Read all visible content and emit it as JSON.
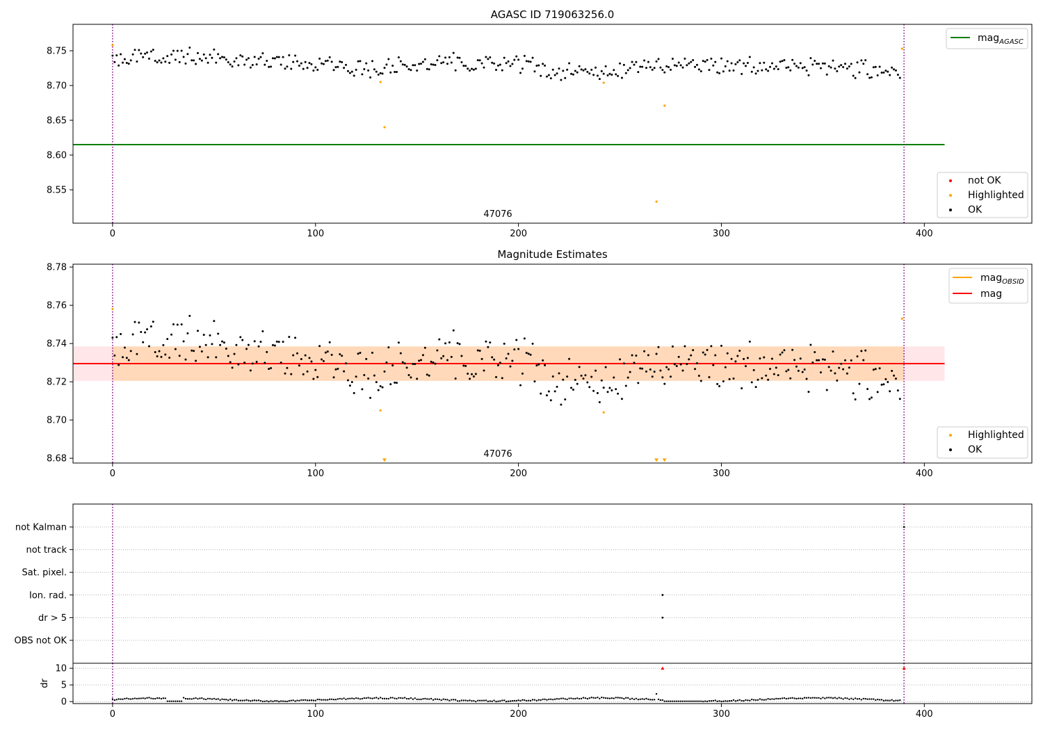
{
  "chart_data": [
    {
      "type": "scatter",
      "title": "AGASC ID 719063256.0",
      "xlim": [
        -19.5,
        453
      ],
      "ylim": [
        8.502,
        8.788
      ],
      "xticks": [
        "0",
        "100",
        "200",
        "300",
        "400"
      ],
      "xtick_values": [
        0,
        100,
        200,
        300,
        400
      ],
      "yticks": [
        "8.55",
        "8.60",
        "8.65",
        "8.70",
        "8.75"
      ],
      "ytick_values": [
        8.55,
        8.6,
        8.65,
        8.7,
        8.75
      ],
      "annotation": "47076",
      "annotation_x": 195,
      "vlines": [
        0,
        390
      ],
      "vline_color": "#800080",
      "hline": {
        "y": 8.615,
        "x_end": 410,
        "color": "#008000"
      },
      "legend_top": [
        {
          "label": "mag",
          "subscript": "AGASC",
          "color": "#008000",
          "kind": "line"
        }
      ],
      "legend_bottom": [
        {
          "label": "not OK",
          "color": "#ff0000",
          "kind": "dot"
        },
        {
          "label": "Highlighted",
          "color": "#ffa500",
          "kind": "dot"
        },
        {
          "label": "OK",
          "color": "#000000",
          "kind": "dot"
        }
      ],
      "series": [
        {
          "name": "OK",
          "color": "#000000",
          "n": 389,
          "mean": 8.7295,
          "trend": [
            [
              0,
              8.738
            ],
            [
              40,
              8.742
            ],
            [
              80,
              8.733
            ],
            [
              130,
              8.724
            ],
            [
              160,
              8.735
            ],
            [
              200,
              8.731
            ],
            [
              215,
              8.722
            ],
            [
              240,
              8.72
            ],
            [
              260,
              8.728
            ],
            [
              290,
              8.728
            ],
            [
              330,
              8.729
            ],
            [
              360,
              8.724
            ],
            [
              388,
              8.722
            ]
          ]
        },
        {
          "name": "Highlighted",
          "color": "#ffa500",
          "points": [
            [
              0,
              8.758
            ],
            [
              132,
              8.705
            ],
            [
              134,
              8.64
            ],
            [
              242,
              8.704
            ],
            [
              268,
              8.533
            ],
            [
              272,
              8.671
            ],
            [
              389,
              8.753
            ]
          ]
        }
      ]
    },
    {
      "type": "scatter",
      "title": "Magnitude Estimates",
      "xlim": [
        -19.5,
        453
      ],
      "ylim": [
        8.6775,
        8.7815
      ],
      "xticks": [
        "0",
        "100",
        "200",
        "300",
        "400"
      ],
      "xtick_values": [
        0,
        100,
        200,
        300,
        400
      ],
      "yticks": [
        "8.68",
        "8.70",
        "8.72",
        "8.74",
        "8.76",
        "8.78"
      ],
      "ytick_values": [
        8.68,
        8.7,
        8.72,
        8.74,
        8.76,
        8.78
      ],
      "annotation": "47076",
      "annotation_x": 195,
      "vlines": [
        0,
        390
      ],
      "vline_color": "#800080",
      "mag_line": {
        "y": 8.7295,
        "x_end": 410,
        "color": "#ff0000"
      },
      "band_outer": {
        "y0": 8.7205,
        "y1": 8.7385,
        "x_end": 410,
        "color": "#ffb6c1"
      },
      "band_inner": {
        "y0": 8.7205,
        "y1": 8.7385,
        "x0": 0,
        "x1": 390,
        "color": "#ffa500"
      },
      "legend_top": [
        {
          "label": "mag",
          "subscript": "OBSID",
          "color": "#ffa500",
          "kind": "line"
        },
        {
          "label": "mag",
          "subscript": "",
          "color": "#ff0000",
          "kind": "line"
        }
      ],
      "legend_bottom": [
        {
          "label": "Highlighted",
          "color": "#ffa500",
          "kind": "dot"
        },
        {
          "label": "OK",
          "color": "#000000",
          "kind": "dot"
        }
      ],
      "series": [
        {
          "name": "OK",
          "color": "#000000",
          "n": 389,
          "mean": 8.7295,
          "trend": [
            [
              0,
              8.738
            ],
            [
              40,
              8.742
            ],
            [
              80,
              8.733
            ],
            [
              130,
              8.724
            ],
            [
              160,
              8.735
            ],
            [
              200,
              8.731
            ],
            [
              215,
              8.722
            ],
            [
              240,
              8.72
            ],
            [
              260,
              8.728
            ],
            [
              290,
              8.728
            ],
            [
              330,
              8.729
            ],
            [
              360,
              8.724
            ],
            [
              388,
              8.722
            ]
          ]
        },
        {
          "name": "Highlighted",
          "color": "#ffa500",
          "points": [
            [
              0,
              8.758
            ],
            [
              132,
              8.705
            ],
            [
              242,
              8.704
            ],
            [
              389,
              8.753
            ]
          ]
        },
        {
          "name": "Highlighted (off-scale)",
          "color": "#ffa500",
          "marker": "triangle-down",
          "points": [
            [
              134,
              8.679
            ],
            [
              268,
              8.679
            ],
            [
              272,
              8.679
            ]
          ]
        }
      ]
    },
    {
      "type": "scatter",
      "title": "",
      "xlim": [
        -19.5,
        453
      ],
      "categories": [
        "not Kalman",
        "not track",
        "Sat. pixel.",
        "Ion. rad.",
        "dr > 5",
        "OBS not OK"
      ],
      "vlines": [
        0,
        390
      ],
      "vline_color": "#800080",
      "flag_points": [
        {
          "category": "Ion. rad.",
          "x": 271
        },
        {
          "category": "dr > 5",
          "x": 271
        },
        {
          "category": "not Kalman",
          "x": 390
        }
      ]
    },
    {
      "type": "scatter",
      "title": "",
      "xlim": [
        -19.5,
        453
      ],
      "ylim": [
        -0.6,
        11.5
      ],
      "ylabel": "dr",
      "xticks": [
        "0",
        "100",
        "200",
        "300",
        "400"
      ],
      "xtick_values": [
        0,
        100,
        200,
        300,
        400
      ],
      "yticks": [
        "0",
        "5",
        "10"
      ],
      "ytick_values": [
        0,
        5,
        10
      ],
      "vlines": [
        0,
        390
      ],
      "vline_color": "#800080",
      "series": [
        {
          "name": "dr",
          "color": "#000000",
          "n": 389,
          "mean": 0.6
        },
        {
          "name": "dr > 5",
          "color": "#ff0000",
          "marker": "triangle-up",
          "points": [
            [
              271,
              10
            ],
            [
              390,
              10
            ]
          ]
        }
      ]
    }
  ]
}
